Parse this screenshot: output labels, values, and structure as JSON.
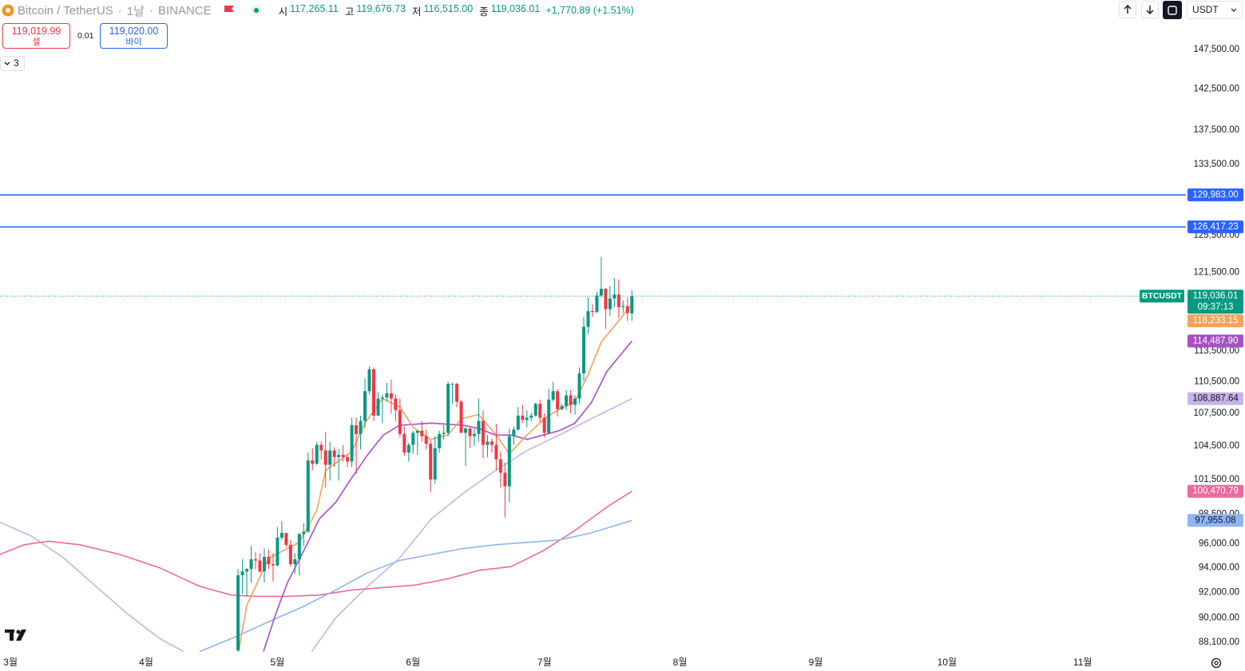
{
  "header": {
    "symbol": "Bitcoin / TetherUS",
    "separator": "·",
    "interval": "1날",
    "exchange": "BINANCE",
    "ohlc": [
      {
        "label": "시",
        "value": "117,265.11"
      },
      {
        "label": "고",
        "value": "119,676.73"
      },
      {
        "label": "저",
        "value": "116,515.00"
      },
      {
        "label": "종",
        "value": "119,036.01"
      }
    ],
    "change": "+1,770.89 (+1.51%)",
    "sell": {
      "price": "119,019.99",
      "label": "셀"
    },
    "spread": "0.01",
    "buy": {
      "price": "119,020.00",
      "label": "바이"
    },
    "indicators": "3",
    "currency": "USDT"
  },
  "chart_data": {
    "type": "candlestick",
    "log": true,
    "grid": false,
    "up_color": "#089981",
    "down_color": "#f23645",
    "xlim": [
      -2.4,
      268.6
    ],
    "xticks": [
      {
        "value": 0,
        "label": "3월"
      },
      {
        "value": 31,
        "label": "4월"
      },
      {
        "value": 61,
        "label": "5월"
      },
      {
        "value": 92,
        "label": "6월"
      },
      {
        "value": 122,
        "label": "7월"
      },
      {
        "value": 153,
        "label": "8월"
      },
      {
        "value": 184,
        "label": "9월"
      },
      {
        "value": 214,
        "label": "10월"
      },
      {
        "value": 245,
        "label": "11월"
      }
    ],
    "ylim": [
      87380,
      153980
    ],
    "yticks": [
      {
        "value": 147500,
        "label": "147,500.00"
      },
      {
        "value": 142500,
        "label": "142,500.00"
      },
      {
        "value": 137500,
        "label": "137,500.00"
      },
      {
        "value": 133500,
        "label": "133,500.00"
      },
      {
        "value": 125500,
        "label": "125,500.00"
      },
      {
        "value": 121500,
        "label": "121,500.00"
      },
      {
        "value": 113500,
        "label": "113,500.00"
      },
      {
        "value": 110500,
        "label": "110,500.00"
      },
      {
        "value": 107500,
        "label": "107,500.00"
      },
      {
        "value": 104500,
        "label": "104,500.00"
      },
      {
        "value": 101500,
        "label": "101,500.00"
      },
      {
        "value": 98500,
        "label": "98,500.00"
      },
      {
        "value": 96000,
        "label": "96,000.00"
      },
      {
        "value": 94000,
        "label": "94,000.00"
      },
      {
        "value": 92000,
        "label": "92,000.00"
      },
      {
        "value": 90000,
        "label": "90,000.00"
      },
      {
        "value": 88100,
        "label": "88,100.00"
      }
    ],
    "candles": {
      "x": [
        52,
        53,
        54,
        55,
        56,
        57,
        58,
        59,
        60,
        61,
        62,
        63,
        64,
        65,
        66,
        67,
        68,
        69,
        70,
        71,
        72,
        73,
        74,
        75,
        76,
        77,
        78,
        79,
        80,
        81,
        82,
        83,
        84,
        85,
        86,
        87,
        88,
        89,
        90,
        91,
        92,
        93,
        94,
        95,
        96,
        97,
        98,
        99,
        100,
        101,
        102,
        103,
        104,
        105,
        106,
        107,
        108,
        109,
        110,
        111,
        112,
        113,
        114,
        115,
        116,
        117,
        118,
        119,
        120,
        121,
        122,
        123,
        124,
        125,
        126,
        127,
        128,
        129,
        130,
        131,
        132,
        133,
        134,
        135,
        136,
        137,
        138,
        139,
        140,
        141,
        142
      ],
      "open": [
        87500,
        93400,
        93700,
        93900,
        94700,
        94600,
        93700,
        94900,
        94300,
        94200,
        96500,
        96900,
        95900,
        94300,
        94700,
        96800,
        97000,
        103200,
        102900,
        104600,
        104100,
        102800,
        104100,
        103500,
        103700,
        103500,
        103100,
        106400,
        105600,
        106800,
        109600,
        111700,
        107300,
        108900,
        109000,
        109400,
        108900,
        107800,
        105600,
        103900,
        104600,
        105700,
        105900,
        105400,
        104700,
        101500,
        104300,
        105600,
        105700,
        110300,
        110300,
        108600,
        105700,
        106100,
        105400,
        105600,
        106800,
        104600,
        104900,
        104600,
        103300,
        102100,
        100900,
        105400,
        106000,
        107300,
        106900,
        107100,
        107300,
        108400,
        107100,
        105700,
        108800,
        109600,
        107900,
        108200,
        109200,
        108300,
        108900,
        111300,
        115900,
        117500,
        117400,
        119100,
        119800,
        117700,
        118800,
        119200,
        117900,
        118000,
        117265.11
      ],
      "high": [
        93900,
        94700,
        94000,
        95800,
        95300,
        95200,
        95600,
        95500,
        95200,
        97400,
        97900,
        96900,
        96300,
        95200,
        96900,
        97700,
        103900,
        104300,
        104900,
        104900,
        105800,
        104900,
        104400,
        104200,
        104600,
        103700,
        107100,
        107100,
        107300,
        110800,
        112000,
        111900,
        109500,
        109300,
        110400,
        110700,
        109300,
        108900,
        106300,
        104800,
        105900,
        105900,
        106800,
        106000,
        105000,
        105400,
        105900,
        106400,
        110500,
        110400,
        110400,
        108800,
        106200,
        106200,
        106100,
        108900,
        107800,
        105500,
        105200,
        106500,
        104000,
        103000,
        106100,
        106300,
        108100,
        108300,
        107800,
        107600,
        108500,
        108800,
        107500,
        109800,
        110500,
        109800,
        108400,
        109700,
        109700,
        109200,
        111900,
        116900,
        118900,
        118200,
        119500,
        123200,
        119900,
        120100,
        120900,
        120800,
        118600,
        118900,
        119676.73
      ],
      "low": [
        87000,
        91900,
        91700,
        92800,
        93900,
        93600,
        92800,
        93900,
        92900,
        94100,
        96300,
        95700,
        94100,
        93500,
        93400,
        95800,
        96900,
        102300,
        102800,
        103300,
        100800,
        101400,
        102600,
        101400,
        103100,
        102600,
        102600,
        102000,
        104200,
        106100,
        109300,
        106800,
        107300,
        106600,
        108600,
        107500,
        106800,
        105300,
        103600,
        103100,
        103800,
        103700,
        104900,
        104200,
        100400,
        101100,
        103900,
        105100,
        105400,
        108400,
        108100,
        105700,
        102700,
        104300,
        104500,
        104900,
        103400,
        103500,
        103900,
        102300,
        100800,
        98200,
        99500,
        104600,
        105900,
        106600,
        106200,
        106800,
        107200,
        106700,
        105300,
        105600,
        108600,
        107200,
        107800,
        107800,
        107500,
        107400,
        108400,
        110600,
        115200,
        116900,
        117300,
        118900,
        115700,
        117000,
        117900,
        116800,
        117300,
        116500,
        116515
      ],
      "close": [
        93400,
        93700,
        93900,
        94700,
        94600,
        93700,
        94900,
        94300,
        94200,
        96500,
        96900,
        95900,
        94300,
        94700,
        96800,
        97000,
        103200,
        102900,
        104600,
        104100,
        102800,
        104100,
        103500,
        103700,
        103500,
        103100,
        106400,
        105600,
        106800,
        109600,
        111700,
        107300,
        108900,
        109000,
        109400,
        108900,
        107800,
        105600,
        103900,
        104600,
        105700,
        105900,
        105400,
        104700,
        101500,
        104300,
        105600,
        105700,
        110300,
        110300,
        108600,
        105700,
        106100,
        105400,
        105600,
        106800,
        104600,
        104900,
        104600,
        103300,
        102100,
        100900,
        105400,
        106000,
        107300,
        106900,
        107100,
        107300,
        108400,
        107100,
        105700,
        108800,
        109600,
        107900,
        108200,
        109200,
        108300,
        108900,
        111300,
        115900,
        117500,
        117400,
        119100,
        119800,
        117700,
        118800,
        119200,
        117900,
        118000,
        117300,
        119036.01
      ]
    },
    "lines": [
      {
        "color": "#c5b5e6",
        "label_text_color": "#131722",
        "x": [
          -2.4,
          4.9,
          12.2,
          19.5,
          26.8,
          34.1,
          39.6,
          50,
          68.8,
          74.3,
          81.6,
          88.9,
          96.2,
          103.5,
          110.8,
          118.1,
          125.4,
          132.7,
          142
        ],
        "values": [
          97800,
          96600,
          94800,
          92500,
          90300,
          88400,
          87400,
          null,
          87400,
          90000,
          92500,
          94800,
          98100,
          100300,
          102300,
          104100,
          105500,
          107000,
          108887.64
        ],
        "value_labels": [
          null,
          null,
          null,
          null,
          null,
          null,
          null,
          null,
          null,
          null,
          null,
          null,
          null,
          null,
          null,
          null,
          null,
          null,
          "108,887.64"
        ]
      },
      {
        "color": "#ec6a9b",
        "label_text_color": "#ffffff",
        "x": [
          -2.4,
          3.1,
          8.6,
          15.9,
          25,
          34.1,
          43.2,
          50.5,
          56,
          63.3,
          70.6,
          77.9,
          85.2,
          92.5,
          99.8,
          107.1,
          114.4,
          121.7,
          129,
          136.3,
          142
        ],
        "values": [
          95100,
          95900,
          96200,
          95900,
          95100,
          94000,
          92500,
          91800,
          91700,
          91700,
          91800,
          92200,
          92400,
          92600,
          93100,
          93800,
          94100,
          95400,
          97100,
          99100,
          100470.79
        ],
        "value_labels": [
          null,
          null,
          null,
          null,
          null,
          null,
          null,
          null,
          null,
          null,
          null,
          null,
          null,
          null,
          null,
          null,
          null,
          null,
          null,
          null,
          "100,470.79"
        ]
      },
      {
        "color": "#8fb4f2",
        "label_text_color": "#131722",
        "x": [
          43.2,
          50.5,
          59.7,
          67,
          74.3,
          81.6,
          88.9,
          96.2,
          103.5,
          110.8,
          118.1,
          125.4,
          132.7,
          142
        ],
        "values": [
          87400,
          88400,
          89800,
          90900,
          92200,
          93600,
          94600,
          95100,
          95600,
          95900,
          96100,
          96300,
          96900,
          97955.08
        ],
        "value_labels": [
          null,
          null,
          null,
          null,
          null,
          null,
          null,
          null,
          null,
          null,
          null,
          null,
          null,
          "97,955.08"
        ]
      },
      {
        "color": "#a84fc6",
        "label_text_color": "#ffffff",
        "x": [
          57.8,
          60.6,
          63.3,
          67,
          70.6,
          74.3,
          77.9,
          81.6,
          85.2,
          88.9,
          92.5,
          96.2,
          99.8,
          103.5,
          107.1,
          110.8,
          114.4,
          118.1,
          121.7,
          125.4,
          129,
          132.7,
          136.3,
          142
        ],
        "values": [
          87400,
          90300,
          92800,
          95400,
          98100,
          99500,
          101600,
          103700,
          105500,
          106400,
          106500,
          106600,
          106500,
          106400,
          106100,
          105500,
          105500,
          105100,
          105500,
          105900,
          106600,
          108500,
          111500,
          114487.9
        ],
        "value_labels": [
          null,
          null,
          null,
          null,
          null,
          null,
          null,
          null,
          null,
          null,
          null,
          null,
          null,
          null,
          null,
          null,
          null,
          null,
          null,
          null,
          null,
          null,
          null,
          "114,487.90"
        ]
      },
      {
        "color": "#f5a15a",
        "label_text_color": "#ffffff",
        "x": [
          52,
          54,
          59,
          66,
          70,
          72,
          78,
          81,
          85,
          89,
          92,
          96,
          100,
          103,
          107,
          111,
          114,
          118,
          122,
          125,
          129,
          132,
          135,
          139,
          142
        ],
        "values": [
          87200,
          91000,
          94800,
          96100,
          98800,
          102300,
          104000,
          106600,
          108900,
          108100,
          106200,
          105100,
          105500,
          107000,
          107400,
          105500,
          103800,
          105500,
          107000,
          107800,
          108600,
          111200,
          114400,
          116500,
          118233.15
        ],
        "value_labels": [
          null,
          null,
          null,
          null,
          null,
          null,
          null,
          null,
          null,
          null,
          null,
          null,
          null,
          null,
          null,
          null,
          null,
          null,
          null,
          null,
          null,
          null,
          null,
          null,
          "118,233.15"
        ]
      }
    ],
    "hlines": {
      "color": "#2962ff",
      "values": [
        129983,
        126417.23
      ],
      "value_labels": [
        "129,983.00",
        "126,417.23"
      ]
    },
    "last_price": {
      "value": 119036.01,
      "label": "119,036.01",
      "symbol": "BTCUSDT",
      "countdown": "09:37:13",
      "color": "#089981"
    }
  }
}
